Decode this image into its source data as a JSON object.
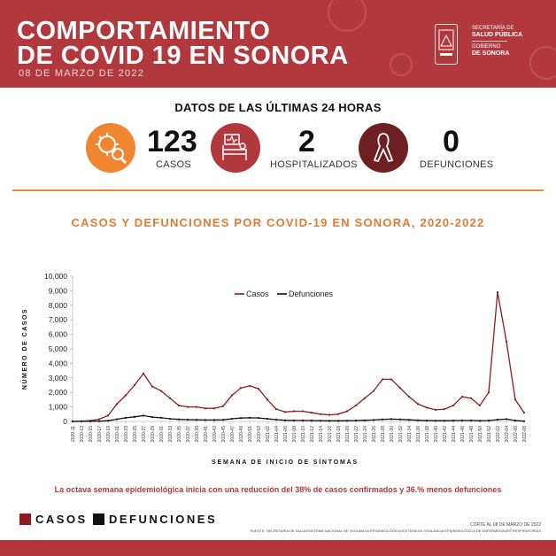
{
  "header": {
    "title_line1": "COMPORTAMIENTO",
    "title_line2": "DE COVID 19 EN SONORA",
    "date": "08 DE MARZO DE 2022",
    "logo_line1": "SECRETARÍA DE",
    "logo_line2": "SALUD PÚBLICA",
    "logo_line3": "GOBIERNO",
    "logo_line4": "DE SONORA"
  },
  "summary": {
    "title": "DATOS DE LAS ÚLTIMAS 24 HORAS",
    "cases_value": "123",
    "cases_label": "CASOS",
    "hosp_value": "2",
    "hosp_label": "HOSPITALIZADOS",
    "deaths_value": "0",
    "deaths_label": "DEFUNCIONES"
  },
  "colors": {
    "brand": "#b1393e",
    "orange": "#f0862f",
    "dark_red": "#6e1f21",
    "cases_line": "#8b1c1f",
    "deaths_line": "#111111"
  },
  "chart_data": {
    "type": "line",
    "title": "CASOS Y DEFUNCIONES POR COVID-19 EN SONORA, 2020-2022",
    "ylabel": "NÚMERO DE CASOS",
    "xlabel": "SEMANA DE INICIO DE SÍNTOMAS",
    "ylim": [
      0,
      10000
    ],
    "yticks": [
      "0",
      "1,000",
      "2,000",
      "3,000",
      "4,000",
      "5,000",
      "6,000",
      "7,000",
      "8,000",
      "9,000",
      "10,000"
    ],
    "legend": [
      "Casos",
      "Defunciones"
    ],
    "categories": [
      "2020-11",
      "2020-13",
      "2020-15",
      "2020-17",
      "2020-19",
      "2020-21",
      "2020-23",
      "2020-25",
      "2020-27",
      "2020-29",
      "2020-31",
      "2020-33",
      "2020-35",
      "2020-37",
      "2020-39",
      "2020-41",
      "2020-43",
      "2020-45",
      "2020-47",
      "2020-49",
      "2020-51",
      "2020-53",
      "2021-02",
      "2021-04",
      "2021-06",
      "2021-08",
      "2021-10",
      "2021-12",
      "2021-14",
      "2021-16",
      "2021-18",
      "2021-20",
      "2021-22",
      "2021-24",
      "2021-26",
      "2021-28",
      "2021-30",
      "2021-32",
      "2021-34",
      "2021-36",
      "2021-38",
      "2021-40",
      "2021-42",
      "2021-44",
      "2021-46",
      "2021-48",
      "2021-50",
      "2021-52",
      "2022-02",
      "2022-04",
      "2022-06",
      "2022-08"
    ],
    "series": [
      {
        "name": "Casos",
        "values": [
          0,
          20,
          50,
          150,
          400,
          1200,
          1800,
          2500,
          3300,
          2400,
          2100,
          1600,
          1100,
          1000,
          1000,
          900,
          900,
          1050,
          1800,
          2300,
          2450,
          2250,
          1500,
          850,
          650,
          700,
          700,
          600,
          500,
          450,
          500,
          700,
          1100,
          1600,
          2100,
          2900,
          2900,
          2300,
          1700,
          1200,
          950,
          800,
          850,
          1100,
          1700,
          1600,
          1100,
          2000,
          8900,
          5500,
          1500,
          600
        ]
      },
      {
        "name": "Defunciones",
        "values": [
          0,
          5,
          10,
          20,
          50,
          150,
          250,
          320,
          400,
          300,
          250,
          180,
          140,
          120,
          110,
          100,
          100,
          110,
          180,
          230,
          250,
          240,
          180,
          120,
          80,
          70,
          70,
          60,
          50,
          40,
          40,
          50,
          60,
          80,
          100,
          140,
          160,
          140,
          110,
          80,
          60,
          50,
          50,
          60,
          70,
          70,
          50,
          60,
          120,
          160,
          60,
          20
        ]
      }
    ]
  },
  "footer": {
    "note": "La octava semana epidemiológica inicia con una reducción del 38% de casos confirmados y 36.% menos defunciones",
    "legend_cases": "CASOS",
    "legend_deaths": "DEFUNCIONES",
    "corte": "CORTE AL 08 DE MARZO DE 2022",
    "fuente": "FUENTE: SECRETARÍA DE SALUD/SISTEMA NACIONAL DE VIGILANCIA EPIDEMIOLÓGICA/SISTEMA DE VIGILANCIA EPIDEMIOLÓGICA DE ENFERMEDADES RESPIRATORIAS"
  }
}
